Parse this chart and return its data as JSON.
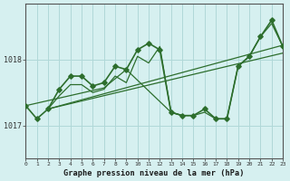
{
  "title": "Graphe pression niveau de la mer (hPa)",
  "bg_color": "#d6f0f0",
  "grid_color": "#b0d8d8",
  "line_color": "#2d6e2d",
  "xlim": [
    0,
    23
  ],
  "ylim": [
    1016.5,
    1018.85
  ],
  "yticks": [
    1017,
    1018
  ],
  "xtick_labels": [
    "0",
    "1",
    "2",
    "3",
    "4",
    "5",
    "6",
    "7",
    "8",
    "9",
    "10",
    "11",
    "12",
    "13",
    "14",
    "15",
    "16",
    "17",
    "18",
    "19",
    "20",
    "21",
    "22",
    "23"
  ],
  "series_main": {
    "x": [
      0,
      1,
      2,
      3,
      4,
      5,
      6,
      7,
      8,
      9,
      10,
      11,
      12,
      13,
      14,
      15,
      16,
      17,
      18,
      19,
      20,
      21,
      22,
      23
    ],
    "y": [
      1017.3,
      1017.1,
      1017.25,
      1017.55,
      1017.75,
      1017.75,
      1017.6,
      1017.65,
      1017.9,
      1017.85,
      1018.15,
      1018.25,
      1018.15,
      1017.2,
      1017.15,
      1017.15,
      1017.25,
      1017.1,
      1017.1,
      1017.9,
      1018.05,
      1018.35,
      1018.6,
      1018.2
    ]
  },
  "series_extra": [
    {
      "x": [
        2,
        3,
        4,
        5,
        6,
        7,
        8,
        9,
        10,
        11,
        12,
        13,
        14,
        15,
        16,
        17,
        18,
        19,
        20,
        21,
        22,
        23
      ],
      "y": [
        1017.25,
        1017.45,
        1017.62,
        1017.62,
        1017.5,
        1017.55,
        1017.75,
        1017.65,
        1018.05,
        1017.95,
        1018.2,
        1017.2,
        1017.15,
        1017.15,
        1017.2,
        1017.1,
        1017.1,
        1017.9,
        1018.05,
        1018.35,
        1018.55,
        1018.2
      ]
    },
    {
      "x": [
        2,
        23
      ],
      "y": [
        1017.25,
        1018.22
      ]
    },
    {
      "x": [
        2,
        23
      ],
      "y": [
        1017.25,
        1018.1
      ]
    },
    {
      "x": [
        0,
        7,
        9,
        13,
        14
      ],
      "y": [
        1017.3,
        1017.57,
        1017.85,
        1017.2,
        1017.15
      ]
    }
  ]
}
